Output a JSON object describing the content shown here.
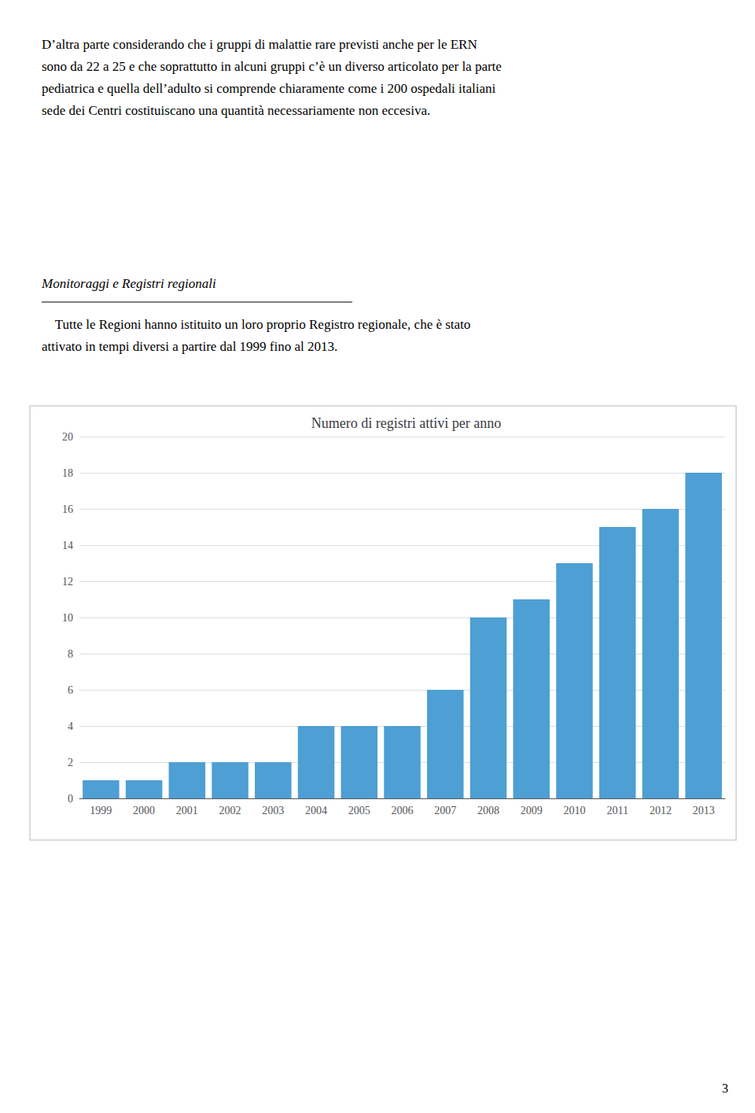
{
  "chart_data": {
    "type": "bar",
    "title": "Numero di registri attivi per anno",
    "categories": [
      "1999",
      "2000",
      "2001",
      "2002",
      "2003",
      "2004",
      "2005",
      "2006",
      "2007",
      "2008",
      "2009",
      "2010",
      "2011",
      "2012",
      "2013"
    ],
    "values": [
      1,
      1,
      2,
      2,
      2,
      4,
      4,
      4,
      6,
      10,
      11,
      13,
      15,
      16,
      18
    ],
    "color": "#4d9fd4",
    "ylim": [
      0,
      20
    ],
    "yticks": [
      0,
      2,
      4,
      6,
      8,
      10,
      12,
      14,
      16,
      18,
      20
    ],
    "grid": true,
    "annotations": [
      "D’altra parte considerando che i gruppi di malattie rare previsti anche per le ERN\nsono da 22 a 25 e che soprattutto in alcuni gruppi c’è un diverso articolato per la parte\npediatrica e quella dell’adulto si comprende chiaramente come i 200 ospedali italiani\nsede dei Centri costituiscano una quantità necessariamente non eccesiva.",
      "Monitoraggi e Registri regionali",
      "    Tutte le Regioni hanno istituito un loro proprio Registro regionale, che è stato\nattivato in tempi diversi a partire dal 1999 fino al 2013.",
      "3"
    ]
  }
}
